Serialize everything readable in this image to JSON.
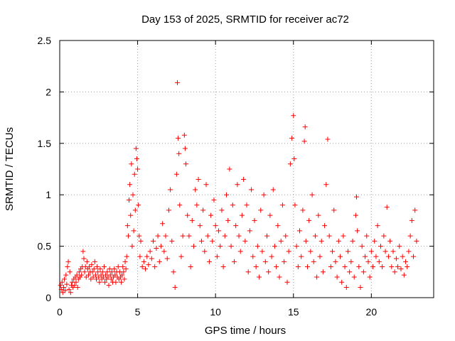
{
  "chart_data": {
    "type": "scatter",
    "title": "Day 153 of 2025, SRMTID for receiver ac72",
    "xlabel": "GPS time / hours",
    "ylabel": "SRMTID / TECUs",
    "xlim": [
      0,
      24
    ],
    "ylim": [
      0,
      2.5
    ],
    "xticks": [
      0,
      5,
      10,
      15,
      20
    ],
    "yticks": [
      0,
      0.5,
      1,
      1.5,
      2,
      2.5
    ],
    "xtick_labels": [
      "0",
      "5",
      "10",
      "15",
      "20"
    ],
    "ytick_labels": [
      "0",
      "0.5",
      "1",
      "1.5",
      "2",
      "2.5"
    ],
    "grid": true,
    "marker": "+",
    "series": [
      {
        "name": "SRMTID",
        "color": "#ff0000",
        "points": [
          [
            0.05,
            0.12
          ],
          [
            0.1,
            0.08
          ],
          [
            0.15,
            0.15
          ],
          [
            0.2,
            0.05
          ],
          [
            0.25,
            0.1
          ],
          [
            0.3,
            0.18
          ],
          [
            0.35,
            0.07
          ],
          [
            0.4,
            0.22
          ],
          [
            0.45,
            0.13
          ],
          [
            0.5,
            0.3
          ],
          [
            0.55,
            0.35
          ],
          [
            0.6,
            0.08
          ],
          [
            0.65,
            0.25
          ],
          [
            0.7,
            0.05
          ],
          [
            0.75,
            0.12
          ],
          [
            0.8,
            0.15
          ],
          [
            0.85,
            0.1
          ],
          [
            0.9,
            0.18
          ],
          [
            0.95,
            0.12
          ],
          [
            1.0,
            0.2
          ],
          [
            1.05,
            0.15
          ],
          [
            1.1,
            0.22
          ],
          [
            1.15,
            0.1
          ],
          [
            1.2,
            0.18
          ],
          [
            1.25,
            0.25
          ],
          [
            1.3,
            0.2
          ],
          [
            1.35,
            0.28
          ],
          [
            1.4,
            0.22
          ],
          [
            1.45,
            0.3
          ],
          [
            1.5,
            0.45
          ],
          [
            1.55,
            0.38
          ],
          [
            1.6,
            0.25
          ],
          [
            1.65,
            0.3
          ],
          [
            1.7,
            0.2
          ],
          [
            1.75,
            0.35
          ],
          [
            1.8,
            0.28
          ],
          [
            1.85,
            0.22
          ],
          [
            1.9,
            0.3
          ],
          [
            1.95,
            0.25
          ],
          [
            2.0,
            0.18
          ],
          [
            2.05,
            0.32
          ],
          [
            2.1,
            0.25
          ],
          [
            2.15,
            0.2
          ],
          [
            2.2,
            0.28
          ],
          [
            2.25,
            0.35
          ],
          [
            2.3,
            0.22
          ],
          [
            2.35,
            0.18
          ],
          [
            2.4,
            0.3
          ],
          [
            2.45,
            0.25
          ],
          [
            2.5,
            0.2
          ],
          [
            2.55,
            0.15
          ],
          [
            2.6,
            0.28
          ],
          [
            2.65,
            0.22
          ],
          [
            2.7,
            0.18
          ],
          [
            2.75,
            0.25
          ],
          [
            2.8,
            0.2
          ],
          [
            2.85,
            0.3
          ],
          [
            2.9,
            0.15
          ],
          [
            2.95,
            0.22
          ],
          [
            3.0,
            0.18
          ],
          [
            3.05,
            0.25
          ],
          [
            3.1,
            0.2
          ],
          [
            3.15,
            0.12
          ],
          [
            3.2,
            0.28
          ],
          [
            3.25,
            0.22
          ],
          [
            3.3,
            0.18
          ],
          [
            3.35,
            0.25
          ],
          [
            3.4,
            0.15
          ],
          [
            3.45,
            0.2
          ],
          [
            3.5,
            0.28
          ],
          [
            3.55,
            0.22
          ],
          [
            3.6,
            0.15
          ],
          [
            3.65,
            0.25
          ],
          [
            3.7,
            0.2
          ],
          [
            3.75,
            0.3
          ],
          [
            3.8,
            0.18
          ],
          [
            3.85,
            0.25
          ],
          [
            3.9,
            0.2
          ],
          [
            3.95,
            0.15
          ],
          [
            4.0,
            0.22
          ],
          [
            4.05,
            0.3
          ],
          [
            4.1,
            0.25
          ],
          [
            4.15,
            0.18
          ],
          [
            4.2,
            0.35
          ],
          [
            4.25,
            0.28
          ],
          [
            4.3,
            0.4
          ],
          [
            4.35,
            0.7
          ],
          [
            4.4,
            0.6
          ],
          [
            4.45,
            0.95
          ],
          [
            4.5,
            1.1
          ],
          [
            4.55,
            0.8
          ],
          [
            4.6,
            1.3
          ],
          [
            4.65,
            0.5
          ],
          [
            4.7,
            1.0
          ],
          [
            4.75,
            0.65
          ],
          [
            4.8,
            1.2
          ],
          [
            4.85,
            0.85
          ],
          [
            4.9,
            1.45
          ],
          [
            4.95,
            1.35
          ],
          [
            5.0,
            1.25
          ],
          [
            5.05,
            0.9
          ],
          [
            5.1,
            0.6
          ],
          [
            5.15,
            0.4
          ],
          [
            5.2,
            0.55
          ],
          [
            5.3,
            0.3
          ],
          [
            5.4,
            0.35
          ],
          [
            5.5,
            0.28
          ],
          [
            5.6,
            0.4
          ],
          [
            5.7,
            0.32
          ],
          [
            5.8,
            0.45
          ],
          [
            5.9,
            0.38
          ],
          [
            6.0,
            0.55
          ],
          [
            6.1,
            0.3
          ],
          [
            6.2,
            0.48
          ],
          [
            6.3,
            0.6
          ],
          [
            6.4,
            0.35
          ],
          [
            6.5,
            0.5
          ],
          [
            6.6,
            0.72
          ],
          [
            6.7,
            0.45
          ],
          [
            6.8,
            0.6
          ],
          [
            6.9,
            0.38
          ],
          [
            7.0,
            0.85
          ],
          [
            7.1,
            1.05
          ],
          [
            7.2,
            0.55
          ],
          [
            7.3,
            0.25
          ],
          [
            7.4,
            0.1
          ],
          [
            7.5,
            1.2
          ],
          [
            7.55,
            2.09
          ],
          [
            7.6,
            1.55
          ],
          [
            7.65,
            1.4
          ],
          [
            7.7,
            0.9
          ],
          [
            7.8,
            0.4
          ],
          [
            7.9,
            0.6
          ],
          [
            8.0,
            1.58
          ],
          [
            8.05,
            1.45
          ],
          [
            8.1,
            1.3
          ],
          [
            8.2,
            0.8
          ],
          [
            8.3,
            0.6
          ],
          [
            8.4,
            0.3
          ],
          [
            8.5,
            0.75
          ],
          [
            8.6,
            0.5
          ],
          [
            8.7,
            1.05
          ],
          [
            8.8,
            0.9
          ],
          [
            8.9,
            1.15
          ],
          [
            9.0,
            0.7
          ],
          [
            9.1,
            0.55
          ],
          [
            9.2,
            0.85
          ],
          [
            9.3,
            0.45
          ],
          [
            9.4,
            1.1
          ],
          [
            9.5,
            0.6
          ],
          [
            9.6,
            0.35
          ],
          [
            9.7,
            0.8
          ],
          [
            9.8,
            0.55
          ],
          [
            9.9,
            0.95
          ],
          [
            10.0,
            0.7
          ],
          [
            10.1,
            0.4
          ],
          [
            10.2,
            0.65
          ],
          [
            10.3,
            0.5
          ],
          [
            10.4,
            0.85
          ],
          [
            10.5,
            0.3
          ],
          [
            10.6,
            0.6
          ],
          [
            10.7,
            1.0
          ],
          [
            10.8,
            0.75
          ],
          [
            10.9,
            1.25
          ],
          [
            11.0,
            0.5
          ],
          [
            11.1,
            0.9
          ],
          [
            11.2,
            0.35
          ],
          [
            11.3,
            0.7
          ],
          [
            11.4,
            1.1
          ],
          [
            11.5,
            0.6
          ],
          [
            11.6,
            0.45
          ],
          [
            11.7,
            0.8
          ],
          [
            11.8,
            1.15
          ],
          [
            11.9,
            0.55
          ],
          [
            12.0,
            0.9
          ],
          [
            12.1,
            0.25
          ],
          [
            12.2,
            0.65
          ],
          [
            12.3,
            1.05
          ],
          [
            12.4,
            0.4
          ],
          [
            12.5,
            0.75
          ],
          [
            12.6,
            0.3
          ],
          [
            12.7,
            0.5
          ],
          [
            12.8,
            0.2
          ],
          [
            12.9,
            0.85
          ],
          [
            13.0,
            0.45
          ],
          [
            13.1,
            1.0
          ],
          [
            13.2,
            0.35
          ],
          [
            13.3,
            0.6
          ],
          [
            13.4,
            0.25
          ],
          [
            13.5,
            0.8
          ],
          [
            13.6,
            0.4
          ],
          [
            13.7,
            1.05
          ],
          [
            13.8,
            0.5
          ],
          [
            13.9,
            0.3
          ],
          [
            14.0,
            0.7
          ],
          [
            14.1,
            0.2
          ],
          [
            14.2,
            0.55
          ],
          [
            14.3,
            0.9
          ],
          [
            14.4,
            0.35
          ],
          [
            14.5,
            0.6
          ],
          [
            14.6,
            0.15
          ],
          [
            14.7,
            0.45
          ],
          [
            14.8,
            1.3
          ],
          [
            14.9,
            1.55
          ],
          [
            15.0,
            1.77
          ],
          [
            15.05,
            1.35
          ],
          [
            15.1,
            0.9
          ],
          [
            15.2,
            0.5
          ],
          [
            15.3,
            0.3
          ],
          [
            15.4,
            0.65
          ],
          [
            15.5,
            0.4
          ],
          [
            15.6,
            0.85
          ],
          [
            15.7,
            1.52
          ],
          [
            15.75,
            1.66
          ],
          [
            15.8,
            0.55
          ],
          [
            15.9,
            0.3
          ],
          [
            16.0,
            0.75
          ],
          [
            16.1,
            0.45
          ],
          [
            16.2,
            1.0
          ],
          [
            16.3,
            0.35
          ],
          [
            16.4,
            0.6
          ],
          [
            16.5,
            0.2
          ],
          [
            16.6,
            0.8
          ],
          [
            16.7,
            0.4
          ],
          [
            16.8,
            0.55
          ],
          [
            16.9,
            0.25
          ],
          [
            17.0,
            0.7
          ],
          [
            17.1,
            1.1
          ],
          [
            17.2,
            1.54
          ],
          [
            17.3,
            0.6
          ],
          [
            17.4,
            0.3
          ],
          [
            17.5,
            0.45
          ],
          [
            17.6,
            0.85
          ],
          [
            17.7,
            0.35
          ],
          [
            17.8,
            0.2
          ],
          [
            17.9,
            0.55
          ],
          [
            18.0,
            0.4
          ],
          [
            18.1,
            0.15
          ],
          [
            18.2,
            0.6
          ],
          [
            18.3,
            0.3
          ],
          [
            18.4,
            0.1
          ],
          [
            18.5,
            0.45
          ],
          [
            18.6,
            0.25
          ],
          [
            18.7,
            0.35
          ],
          [
            18.8,
            0.55
          ],
          [
            18.9,
            0.2
          ],
          [
            19.0,
            0.8
          ],
          [
            19.05,
            0.98
          ],
          [
            19.1,
            0.65
          ],
          [
            19.2,
            0.3
          ],
          [
            19.3,
            0.1
          ],
          [
            19.4,
            0.5
          ],
          [
            19.5,
            0.25
          ],
          [
            19.6,
            0.4
          ],
          [
            19.7,
            0.6
          ],
          [
            19.8,
            0.35
          ],
          [
            19.9,
            0.2
          ],
          [
            20.0,
            0.45
          ],
          [
            20.1,
            0.3
          ],
          [
            20.2,
            0.55
          ],
          [
            20.3,
            0.4
          ],
          [
            20.4,
            0.7
          ],
          [
            20.5,
            0.35
          ],
          [
            20.6,
            0.5
          ],
          [
            20.7,
            0.3
          ],
          [
            20.8,
            0.6
          ],
          [
            20.9,
            0.45
          ],
          [
            21.0,
            0.88
          ],
          [
            21.1,
            0.4
          ],
          [
            21.2,
            0.55
          ],
          [
            21.3,
            0.3
          ],
          [
            21.4,
            0.45
          ],
          [
            21.5,
            0.25
          ],
          [
            21.6,
            0.38
          ],
          [
            21.7,
            0.3
          ],
          [
            21.8,
            0.5
          ],
          [
            21.9,
            0.28
          ],
          [
            22.0,
            0.4
          ],
          [
            22.1,
            0.22
          ],
          [
            22.2,
            0.35
          ],
          [
            22.3,
            0.3
          ],
          [
            22.4,
            0.45
          ],
          [
            22.5,
            0.6
          ],
          [
            22.6,
            0.75
          ],
          [
            22.7,
            0.4
          ],
          [
            22.8,
            0.85
          ],
          [
            22.9,
            0.55
          ]
        ]
      }
    ]
  }
}
